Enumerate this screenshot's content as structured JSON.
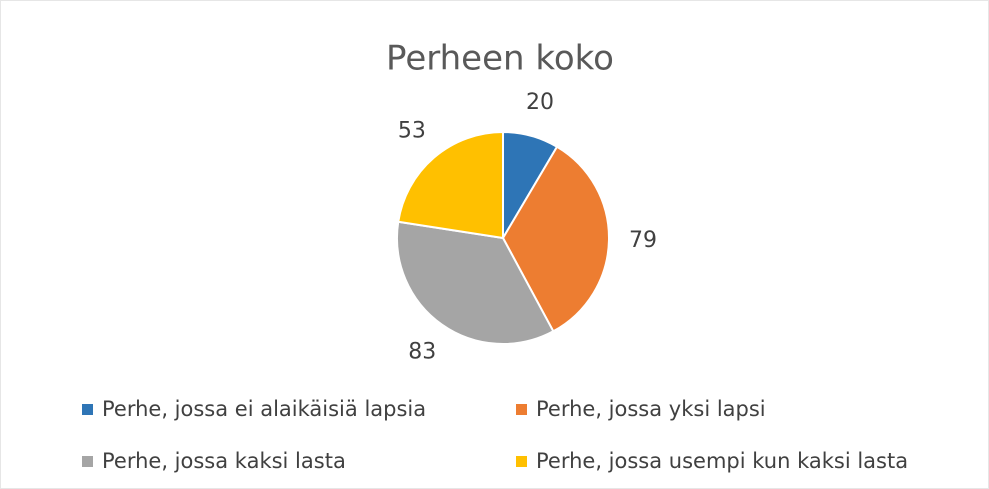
{
  "chart_data": {
    "type": "pie",
    "title": "Perheen koko",
    "categories": [
      "Perhe, jossa ei alaikäisiä lapsia",
      "Perhe, jossa yksi lapsi",
      "Perhe, jossa kaksi lasta",
      "Perhe, jossa usempi kun kaksi lasta"
    ],
    "values": [
      20,
      79,
      83,
      53
    ],
    "colors": [
      "#2e75b6",
      "#ed7d31",
      "#a5a5a5",
      "#ffc000"
    ],
    "legend": "bottom"
  }
}
